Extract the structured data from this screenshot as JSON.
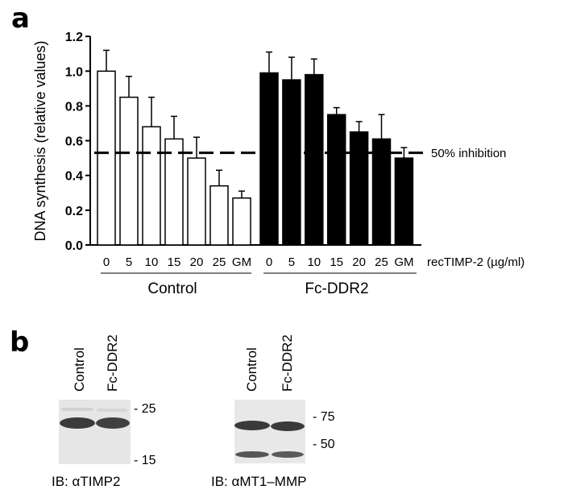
{
  "panel_a_label": "a",
  "panel_b_label": "b",
  "chart_data": {
    "type": "bar",
    "title": "",
    "ylabel": "DNA synthesis (relative values)",
    "xlabel": "recTIMP-2 (µg/ml)",
    "ylim": [
      0,
      1.2
    ],
    "yticks": [
      "0.0",
      "0.2",
      "0.4",
      "0.6",
      "0.8",
      "1.0",
      "1.2"
    ],
    "grid": false,
    "categories": [
      "0",
      "5",
      "10",
      "15",
      "20",
      "25",
      "GM"
    ],
    "series": [
      {
        "name": "Control",
        "fill": "#ffffff",
        "values": [
          1.0,
          0.85,
          0.68,
          0.61,
          0.5,
          0.34,
          0.27
        ],
        "error_upper": [
          1.12,
          0.97,
          0.85,
          0.74,
          0.62,
          0.43,
          0.31
        ]
      },
      {
        "name": "Fc-DDR2",
        "fill": "#000000",
        "values": [
          0.99,
          0.95,
          0.98,
          0.75,
          0.65,
          0.61,
          0.5
        ],
        "error_upper": [
          1.11,
          1.08,
          1.07,
          0.79,
          0.71,
          0.75,
          0.56
        ]
      }
    ],
    "reference_line": {
      "value": 0.53,
      "label": "50% inhibition",
      "style": "dashed"
    }
  },
  "blots": [
    {
      "lanes": [
        "Control",
        "Fc-DDR2"
      ],
      "markers": [
        "25",
        "15"
      ],
      "caption": "IB: αTIMP2"
    },
    {
      "lanes": [
        "Control",
        "Fc-DDR2"
      ],
      "markers": [
        "75",
        "50"
      ],
      "caption": "IB: αMT1–MMP"
    }
  ]
}
